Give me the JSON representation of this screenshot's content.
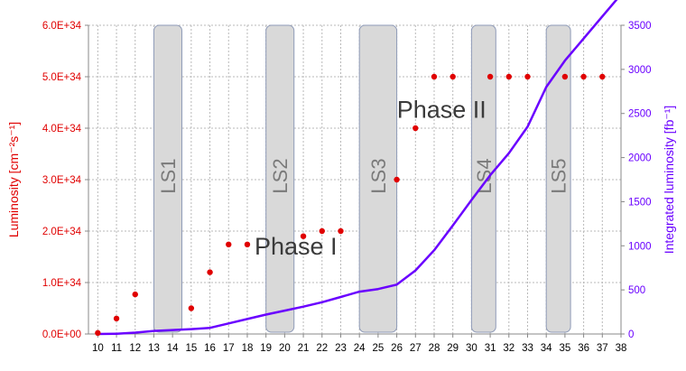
{
  "chart_data": {
    "type": "scatter",
    "x_axis": {
      "ticks": [
        10,
        11,
        12,
        13,
        14,
        15,
        16,
        17,
        18,
        19,
        20,
        21,
        22,
        23,
        24,
        25,
        26,
        27,
        28,
        29,
        30,
        31,
        32,
        33,
        34,
        35,
        36,
        37,
        38
      ],
      "range": [
        9.5,
        38
      ]
    },
    "y_left": {
      "label": "Luminosity [cm⁻²s⁻¹]",
      "range": [
        0,
        6e+34
      ],
      "ticks": [
        {
          "value": 0,
          "label": "0.0E+00"
        },
        {
          "value": 1e+34,
          "label": "1.0E+34"
        },
        {
          "value": 2e+34,
          "label": "2.0E+34"
        },
        {
          "value": 3e+34,
          "label": "3.0E+34"
        },
        {
          "value": 4e+34,
          "label": "4.0E+34"
        },
        {
          "value": 5e+34,
          "label": "5.0E+34"
        },
        {
          "value": 6e+34,
          "label": "6.0E+34"
        }
      ],
      "color": "#e00000"
    },
    "y_right": {
      "label": "Integrated luminosity [fb⁻¹]",
      "range": [
        0,
        3500
      ],
      "ticks": [
        0,
        500,
        1000,
        1500,
        2000,
        2500,
        3000,
        3500
      ],
      "color": "#6a00ff"
    },
    "series": [
      {
        "type": "scatter",
        "axis": "left",
        "color": "#e00000",
        "points": [
          [
            10,
            2e+32
          ],
          [
            11,
            3e+33
          ],
          [
            12,
            7.7e+33
          ],
          [
            15,
            5e+33
          ],
          [
            16,
            1.2e+34
          ],
          [
            17,
            1.74e+34
          ],
          [
            18,
            1.74e+34
          ],
          [
            21,
            1.9e+34
          ],
          [
            22,
            2e+34
          ],
          [
            23,
            2e+34
          ],
          [
            26,
            3e+34
          ],
          [
            27,
            4e+34
          ],
          [
            28,
            5e+34
          ],
          [
            29,
            5e+34
          ],
          [
            31,
            5e+34
          ],
          [
            32,
            5e+34
          ],
          [
            33,
            5e+34
          ],
          [
            35,
            5e+34
          ],
          [
            36,
            5e+34
          ],
          [
            37,
            5e+34
          ]
        ]
      },
      {
        "type": "line",
        "axis": "right",
        "color": "#6a00ff",
        "points": [
          [
            10,
            0
          ],
          [
            11,
            3
          ],
          [
            12,
            15
          ],
          [
            13,
            35
          ],
          [
            14,
            45
          ],
          [
            15,
            55
          ],
          [
            16,
            70
          ],
          [
            17,
            120
          ],
          [
            18,
            170
          ],
          [
            19,
            220
          ],
          [
            20,
            265
          ],
          [
            21,
            310
          ],
          [
            22,
            360
          ],
          [
            23,
            420
          ],
          [
            24,
            480
          ],
          [
            25,
            510
          ],
          [
            26,
            560
          ],
          [
            27,
            720
          ],
          [
            28,
            950
          ],
          [
            29,
            1230
          ],
          [
            30,
            1520
          ],
          [
            31,
            1800
          ],
          [
            32,
            2050
          ],
          [
            33,
            2350
          ],
          [
            34,
            2800
          ],
          [
            35,
            3100
          ],
          [
            36,
            3350
          ],
          [
            37,
            3600
          ],
          [
            38,
            3850
          ]
        ]
      }
    ],
    "shutdowns": [
      {
        "label": "LS1",
        "x0": 13,
        "x1": 14.5
      },
      {
        "label": "LS2",
        "x0": 19,
        "x1": 20.5
      },
      {
        "label": "LS3",
        "x0": 24,
        "x1": 26
      },
      {
        "label": "LS4",
        "x0": 30,
        "x1": 31.3
      },
      {
        "label": "LS5",
        "x0": 34,
        "x1": 35.3
      }
    ],
    "annotations": [
      {
        "text": "Phase I",
        "x": 20.6,
        "y": 1.72e+34
      },
      {
        "text": "Phase II",
        "x": 28.4,
        "y": 4.38e+34
      }
    ],
    "grid": true
  }
}
